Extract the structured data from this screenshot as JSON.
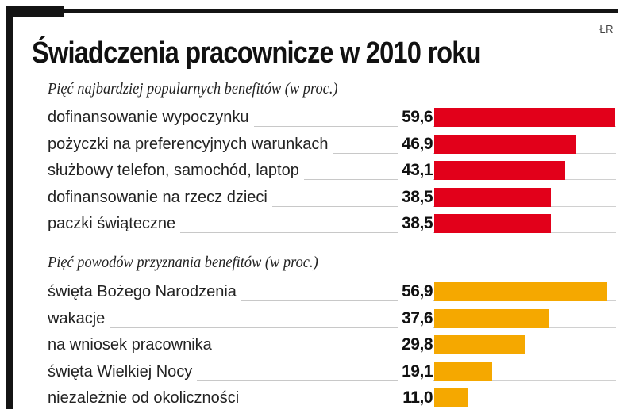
{
  "header": {
    "title": "Świadczenia pracownicze w 2010 roku",
    "credit": "ŁR"
  },
  "colors": {
    "section1_bar": "#e2001a",
    "section2_bar": "#f5a800",
    "frame": "#141414"
  },
  "chart_data": [
    {
      "type": "bar",
      "orientation": "horizontal",
      "title": "Pięć najbardziej popularnych benefitów (w proc.)",
      "categories": [
        "dofinansowanie wypoczynku",
        "pożyczki na preferencyjnych warunkach",
        "służbowy telefon, samochód, laptop",
        "dofinansowanie na rzecz dzieci",
        "paczki świąteczne"
      ],
      "values": [
        59.6,
        46.9,
        43.1,
        38.5,
        38.5
      ],
      "value_labels": [
        "59,6",
        "46,9",
        "43,1",
        "38,5",
        "38,5"
      ],
      "unit": "%",
      "xlim": [
        0,
        59.6
      ],
      "color": "#e2001a",
      "grid": false
    },
    {
      "type": "bar",
      "orientation": "horizontal",
      "title": "Pięć powodów przyznania benefitów (w proc.)",
      "categories": [
        "święta Bożego Narodzenia",
        "wakacje",
        "na wniosek pracownika",
        "święta Wielkiej Nocy",
        "niezależnie od okoliczności"
      ],
      "values": [
        56.9,
        37.6,
        29.8,
        19.1,
        11.0
      ],
      "value_labels": [
        "56,9",
        "37,6",
        "29,8",
        "19,1",
        "11,0"
      ],
      "unit": "%",
      "xlim": [
        0,
        59.6
      ],
      "color": "#f5a800",
      "grid": false
    }
  ]
}
